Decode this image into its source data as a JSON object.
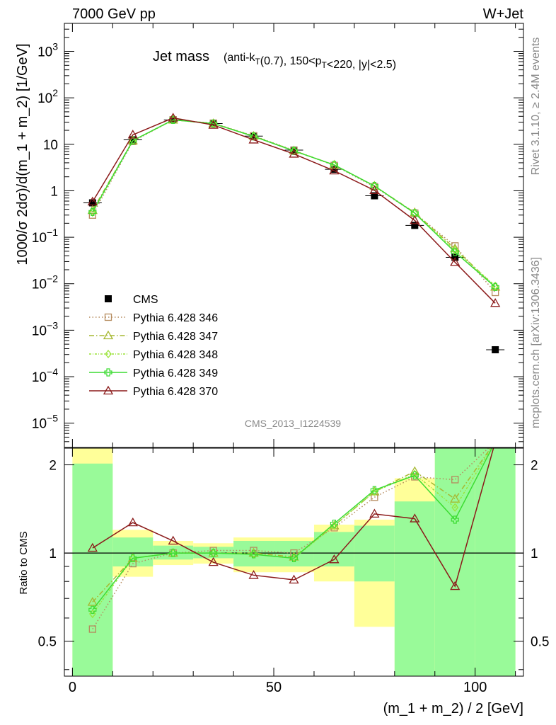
{
  "header": {
    "left": "7000 GeV pp",
    "right": "W+Jet"
  },
  "side": {
    "top": "Rivet 3.1.10, ≥ 2.4M events",
    "bottom": "mcplots.cern.ch [arXiv:1306.3436]"
  },
  "watermark": "CMS_2013_I1224539",
  "colors": {
    "data": "#000000",
    "p346": "#b58b5e",
    "p347": "#a6b832",
    "p348": "#9be43a",
    "p349": "#3cdc32",
    "p370": "#8b1a1a",
    "band_green": "#99fa99",
    "band_yellow": "#ffff99"
  },
  "chart_data": [
    {
      "type": "line",
      "title_main": "Jet mass",
      "title_detail": "(anti-k_T(0.7), 150<p_T<220, |y|<2.5)",
      "ylabel": "1000/σ 2dσ)/d(m_1 + m_2) [1/GeV]",
      "yscale": "log",
      "ylim": [
        3e-06,
        4000
      ],
      "xlim": [
        -2,
        112
      ],
      "ytick_labels": [
        "10^-5",
        "10^-4",
        "10^-3",
        "10^-2",
        "10^-1",
        "1",
        "10",
        "10^2",
        "10^3"
      ],
      "legend_position": "bottom-left",
      "x": [
        5,
        15,
        25,
        35,
        45,
        55,
        65,
        75,
        85,
        95,
        105
      ],
      "series": [
        {
          "name": "CMS",
          "style": "data",
          "marker": "square",
          "values": [
            0.55,
            12.5,
            33.5,
            28.0,
            15.0,
            7.5,
            2.9,
            0.78,
            0.18,
            0.037,
            0.00038
          ]
        },
        {
          "name": "Pythia 6.428 346",
          "style": "dotted",
          "marker": "open-square",
          "values": [
            0.3,
            11.5,
            33.5,
            28.5,
            15.2,
            7.4,
            3.5,
            1.22,
            0.33,
            0.065,
            0.0065
          ]
        },
        {
          "name": "Pythia 6.428 347",
          "style": "dashdot",
          "marker": "open-triangle",
          "values": [
            0.38,
            12.0,
            33.5,
            28.0,
            15.0,
            7.3,
            3.6,
            1.27,
            0.34,
            0.057,
            0.0085
          ]
        },
        {
          "name": "Pythia 6.428 348",
          "style": "dashdot2",
          "marker": "open-diamond",
          "values": [
            0.34,
            12.0,
            33.5,
            28.0,
            14.8,
            7.2,
            3.6,
            1.27,
            0.33,
            0.053,
            0.009
          ]
        },
        {
          "name": "Pythia 6.428 349",
          "style": "solid",
          "marker": "open-cross",
          "values": [
            0.35,
            12.0,
            33.5,
            28.0,
            14.8,
            7.2,
            3.6,
            1.27,
            0.33,
            0.048,
            0.0085
          ]
        },
        {
          "name": "Pythia 6.428 370",
          "style": "solid",
          "marker": "open-triangle",
          "values": [
            0.58,
            16.0,
            37.0,
            26.0,
            12.5,
            6.2,
            2.7,
            1.02,
            0.23,
            0.029,
            0.0038
          ]
        }
      ]
    },
    {
      "type": "line",
      "ylabel": "Ratio to CMS",
      "xlabel": "(m_1 + m_2) / 2 [GeV]",
      "ylim": [
        0.38,
        2.28
      ],
      "xlim": [
        -2,
        112
      ],
      "xtick_labels": [
        "0",
        "50",
        "100"
      ],
      "ytick_labels": [
        "0.5",
        "1",
        "2"
      ],
      "x": [
        5,
        15,
        25,
        35,
        45,
        55,
        65,
        75,
        85,
        95,
        105
      ],
      "bands": {
        "edges": [
          0,
          10,
          20,
          30,
          40,
          50,
          60,
          70,
          80,
          90,
          100,
          110
        ],
        "green_lo": [
          0.38,
          0.9,
          0.95,
          0.96,
          0.9,
          0.9,
          0.9,
          0.8,
          0.38,
          0.38,
          0.38
        ],
        "green_hi": [
          2.02,
          1.13,
          1.06,
          1.05,
          1.1,
          1.1,
          1.18,
          1.24,
          1.5,
          2.28,
          2.28
        ],
        "yellow_lo": [
          0.38,
          0.83,
          0.91,
          0.92,
          0.86,
          0.86,
          0.8,
          0.56,
          0.38,
          0.38,
          0.38
        ],
        "yellow_hi": [
          2.28,
          1.2,
          1.1,
          1.08,
          1.13,
          1.13,
          1.25,
          1.3,
          1.8,
          2.28,
          2.28
        ]
      },
      "series": [
        {
          "name": "Pythia 6.428 346",
          "style": "dotted",
          "marker": "open-square",
          "values": [
            0.55,
            0.92,
            1.0,
            1.02,
            1.02,
            1.0,
            1.22,
            1.55,
            1.82,
            1.78,
            2.4
          ]
        },
        {
          "name": "Pythia 6.428 347",
          "style": "dashdot",
          "marker": "open-triangle",
          "values": [
            0.68,
            0.96,
            1.0,
            1.0,
            1.0,
            0.97,
            1.24,
            1.62,
            1.9,
            1.53,
            2.4
          ]
        },
        {
          "name": "Pythia 6.428 348",
          "style": "dashdot2",
          "marker": "open-diamond",
          "values": [
            0.62,
            0.96,
            1.0,
            1.0,
            0.99,
            0.96,
            1.24,
            1.62,
            1.86,
            1.43,
            2.4
          ]
        },
        {
          "name": "Pythia 6.428 349",
          "style": "solid",
          "marker": "open-cross",
          "values": [
            0.64,
            0.96,
            1.0,
            1.0,
            0.99,
            0.96,
            1.26,
            1.64,
            1.84,
            1.3,
            2.4
          ]
        },
        {
          "name": "Pythia 6.428 370",
          "style": "solid",
          "marker": "open-triangle",
          "values": [
            1.04,
            1.27,
            1.1,
            0.93,
            0.84,
            0.81,
            0.95,
            1.36,
            1.31,
            0.77,
            2.4
          ]
        }
      ]
    }
  ]
}
